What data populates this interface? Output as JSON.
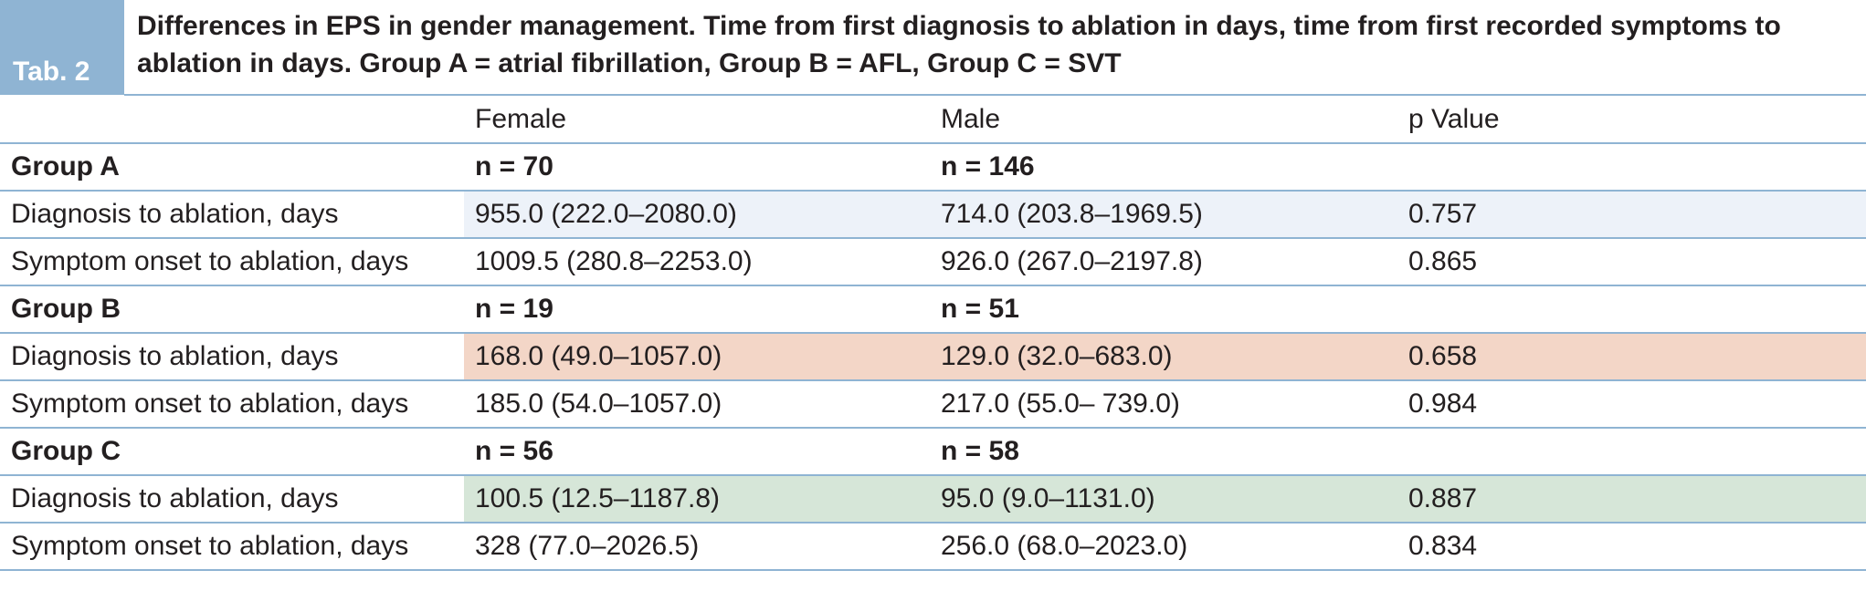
{
  "caption": {
    "tab_label": "Tab. 2",
    "text": "Differences in EPS in gender management. Time from first diagnosis to ablation in days, time from first recorded symptoms to ablation in days. Group A = atrial fibrillation, Group B = AFL, Group C = SVT"
  },
  "header": {
    "label": "",
    "female": "Female",
    "male": "Male",
    "p": "p Value"
  },
  "groups": [
    {
      "name": "Group A",
      "female_n": "n = 70",
      "male_n": "n = 146",
      "highlight_color": "#edf2f9",
      "rows": [
        {
          "label": "Diagnosis to ablation, days",
          "female": "955.0 (222.0–2080.0)",
          "male": "714.0 (203.8–1969.5)",
          "p": "0.757"
        },
        {
          "label": "Symptom onset to ablation, days",
          "female": "1009.5 (280.8–2253.0)",
          "male": "926.0 (267.0–2197.8)",
          "p": "0.865"
        }
      ]
    },
    {
      "name": "Group B",
      "female_n": "n = 19",
      "male_n": "n = 51",
      "highlight_color": "#f3d6c7",
      "rows": [
        {
          "label": "Diagnosis to ablation, days",
          "female": "168.0 (49.0–1057.0)",
          "male": "129.0 (32.0–683.0)",
          "p": "0.658"
        },
        {
          "label": "Symptom onset to ablation, days",
          "female": "185.0 (54.0–1057.0)",
          "male": "217.0 (55.0– 739.0)",
          "p": "0.984"
        }
      ]
    },
    {
      "name": "Group C",
      "female_n": "n = 56",
      "male_n": "n = 58",
      "highlight_color": "#d6e6d8",
      "rows": [
        {
          "label": "Diagnosis to ablation, days",
          "female": "100.5 (12.5–1187.8)",
          "male": "95.0 (9.0–1131.0)",
          "p": "0.887"
        },
        {
          "label": "Symptom onset to ablation, days",
          "female": "328 (77.0–2026.5)",
          "male": "256.0 (68.0–2023.0)",
          "p": "0.834"
        }
      ]
    }
  ],
  "colors": {
    "accent": "#8fb4d3",
    "rule": "#8fb4d3",
    "text": "#231f20"
  }
}
